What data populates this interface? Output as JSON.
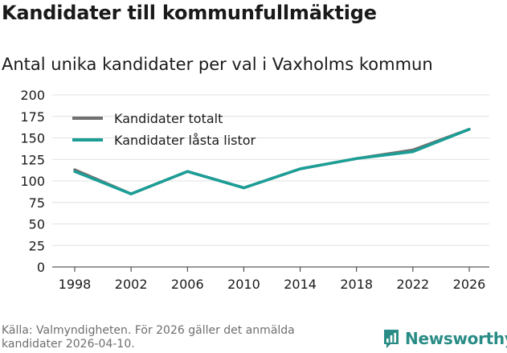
{
  "header": {
    "title": "Kandidater till kommunfullmäktige",
    "subtitle": "Antal unika kandidater per val i Vaxholms kommun"
  },
  "footer": {
    "source": "Källa: Valmyndigheten. För 2026 gäller det anmälda kandidater 2026-04-10.",
    "brand": "Newsworthy"
  },
  "colors": {
    "series_total": "#707070",
    "series_locked": "#1a9e96",
    "grid": "#e0e0e0",
    "axis": "#333333",
    "brand": "#2a8c86"
  },
  "chart_data": {
    "type": "line",
    "title": "Kandidater till kommunfullmäktige",
    "subtitle": "Antal unika kandidater per val i Vaxholms kommun",
    "xlabel": "",
    "ylabel": "",
    "x": [
      1998,
      2002,
      2006,
      2010,
      2014,
      2018,
      2022,
      2026
    ],
    "ylim": [
      0,
      200
    ],
    "yticks": [
      0,
      25,
      50,
      75,
      100,
      125,
      150,
      175,
      200
    ],
    "grid": true,
    "legend_position": "top-left",
    "series": [
      {
        "name": "Kandidater totalt",
        "values": [
          113,
          85,
          111,
          92,
          114,
          126,
          136,
          160
        ]
      },
      {
        "name": "Kandidater låsta listor",
        "values": [
          111,
          85,
          111,
          92,
          114,
          126,
          134,
          160
        ]
      }
    ]
  }
}
